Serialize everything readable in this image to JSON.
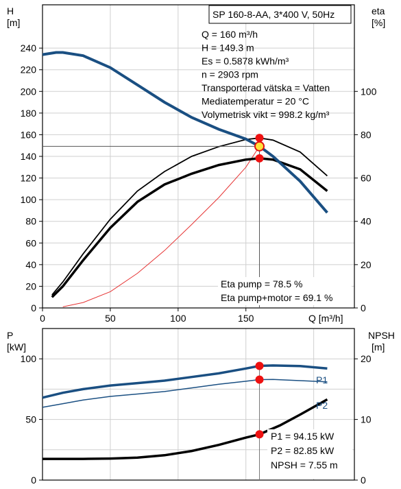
{
  "chart_data": [
    {
      "type": "line",
      "title": "SP 160-8-AA, 3*400 V, 50Hz",
      "xlabel": "Q [m³/h]",
      "ylabel_left": [
        "H",
        "[m]"
      ],
      "ylabel_right": [
        "eta",
        "[%]"
      ],
      "xlim": [
        0,
        230
      ],
      "ylim_left": [
        0,
        280
      ],
      "ylim_right": [
        0,
        140
      ],
      "grid": true,
      "x_ticks": [
        "0",
        "50",
        "100",
        "150"
      ],
      "x_tick_values": [
        0,
        50,
        100,
        150
      ],
      "y_ticks_left": [
        "0",
        "20",
        "40",
        "60",
        "80",
        "100",
        "120",
        "140",
        "160",
        "180",
        "200",
        "220",
        "240"
      ],
      "y_tick_values_left": [
        0,
        20,
        40,
        60,
        80,
        100,
        120,
        140,
        160,
        180,
        200,
        220,
        240
      ],
      "y_ticks_right": [
        "0",
        "20",
        "40",
        "60",
        "80",
        "100"
      ],
      "y_tick_values_right": [
        0,
        20,
        40,
        60,
        80,
        100
      ],
      "info": [
        "Q = 160 m³/h",
        "H = 149.3 m",
        "Es = 0.5878 kWh/m³",
        "n = 2903 rpm",
        "Transporterad vätska = Vatten",
        "Mediatemperatur = 20 °C",
        "Volymetrisk vikt = 998.2 kg/m³"
      ],
      "annotations": [
        "Eta pump = 78.5 %",
        "Eta pump+motor = 69.1 %"
      ],
      "operating_point": {
        "x": 160,
        "h": 149.3,
        "eta_pump": 78.5,
        "eta_total": 69.1
      },
      "series": [
        {
          "key": "H",
          "axis": "left",
          "color": "#1a4f82",
          "x": [
            0,
            10,
            15,
            30,
            50,
            70,
            90,
            110,
            130,
            150,
            160,
            170,
            190,
            210
          ],
          "y": [
            234,
            236,
            236,
            233,
            222,
            206,
            190,
            176,
            165,
            156,
            149.3,
            140,
            117,
            88
          ]
        },
        {
          "key": "eta_pump",
          "axis": "right",
          "color": "#000000",
          "x": [
            7,
            15,
            30,
            50,
            70,
            90,
            110,
            130,
            150,
            160,
            170,
            190,
            210
          ],
          "y": [
            6,
            12,
            25,
            41,
            54,
            63,
            70,
            74.5,
            77.8,
            78.5,
            77.5,
            72,
            61
          ]
        },
        {
          "key": "eta_total",
          "axis": "right",
          "color": "#000000",
          "x": [
            7,
            15,
            30,
            50,
            70,
            90,
            110,
            130,
            150,
            160,
            170,
            190,
            210
          ],
          "y": [
            5,
            10,
            22,
            37,
            49,
            57,
            62,
            66,
            68.5,
            69.1,
            68.5,
            64,
            54
          ]
        },
        {
          "key": "system",
          "axis": "left",
          "color": "#e63333",
          "x": [
            15,
            30,
            50,
            70,
            90,
            110,
            130,
            150,
            160
          ],
          "y": [
            1,
            5,
            15,
            32,
            53,
            77,
            102,
            130,
            149.3
          ]
        }
      ]
    },
    {
      "type": "line",
      "xlim": [
        0,
        230
      ],
      "ylabel_left": [
        "P",
        "[kW]"
      ],
      "ylabel_right": [
        "NPSH",
        "[m]"
      ],
      "ylim_left": [
        0,
        125
      ],
      "ylim_right": [
        0,
        25
      ],
      "grid": true,
      "y_ticks_left": [
        "0",
        "50",
        "100"
      ],
      "y_tick_values_left": [
        0,
        50,
        100
      ],
      "y_ticks_right": [
        "0",
        "10",
        "20"
      ],
      "y_tick_values_right": [
        0,
        10,
        20
      ],
      "annotations": [
        "P1 = 94.15 kW",
        "P2 = 82.85 kW",
        "NPSH = 7.55 m"
      ],
      "series": [
        {
          "key": "P1",
          "name": "P1",
          "axis": "left",
          "color": "#1a4f82",
          "x": [
            0,
            15,
            30,
            50,
            70,
            90,
            110,
            130,
            150,
            160,
            170,
            190,
            210
          ],
          "y": [
            68,
            72,
            75,
            78,
            80,
            82,
            85,
            88,
            92,
            94.15,
            94.5,
            94,
            92
          ]
        },
        {
          "key": "P2",
          "name": "P2",
          "axis": "left",
          "color": "#1a4f82",
          "x": [
            0,
            15,
            30,
            50,
            70,
            90,
            110,
            130,
            150,
            160,
            170,
            190,
            210
          ],
          "y": [
            60,
            63,
            66,
            69,
            71,
            73,
            76,
            79,
            81.5,
            82.85,
            83,
            82,
            81
          ]
        },
        {
          "key": "NPSH",
          "axis": "right",
          "color": "#000000",
          "x": [
            0,
            15,
            30,
            50,
            70,
            90,
            110,
            130,
            150,
            160,
            175,
            190,
            210
          ],
          "y": [
            3.5,
            3.5,
            3.5,
            3.55,
            3.7,
            4.1,
            4.8,
            5.8,
            7.0,
            7.55,
            9.0,
            10.8,
            13.3
          ]
        }
      ]
    }
  ]
}
